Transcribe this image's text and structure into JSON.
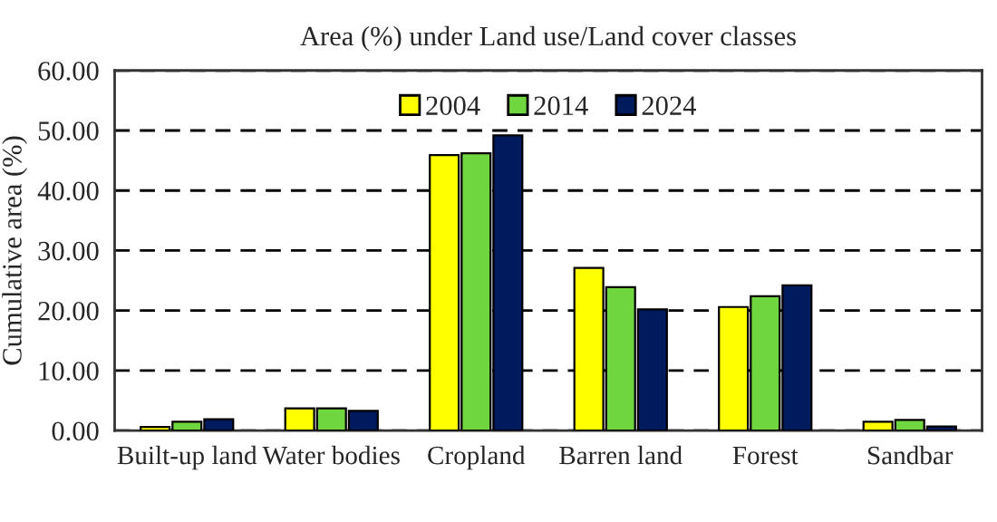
{
  "chart_data": {
    "type": "bar",
    "title": "Area (%) under Land use/Land cover classes",
    "ylabel": "Cumulative area (%)",
    "categories": [
      "Built-up land",
      "Water bodies",
      "Cropland",
      "Barren land",
      "Forest",
      "Sandbar"
    ],
    "series": [
      {
        "name": "2004",
        "color": "#ffff00",
        "values": [
          0.6,
          3.7,
          45.9,
          27.1,
          20.6,
          1.5
        ]
      },
      {
        "name": "2014",
        "color": "#70d640",
        "values": [
          1.5,
          3.7,
          46.2,
          23.9,
          22.4,
          1.8
        ]
      },
      {
        "name": "2024",
        "color": "#001a5e",
        "values": [
          1.9,
          3.3,
          49.2,
          20.2,
          24.2,
          0.7
        ]
      }
    ],
    "ylim": [
      0,
      60
    ],
    "yticks": [
      {
        "value": 0,
        "label": "0.00"
      },
      {
        "value": 10,
        "label": "10.00"
      },
      {
        "value": 20,
        "label": "20.00"
      },
      {
        "value": 30,
        "label": "30.00"
      },
      {
        "value": 40,
        "label": "40.00"
      },
      {
        "value": 50,
        "label": "50.00"
      },
      {
        "value": 60,
        "label": "60.00"
      }
    ],
    "grid": "y",
    "line_style": "dashed",
    "legend": "top"
  }
}
